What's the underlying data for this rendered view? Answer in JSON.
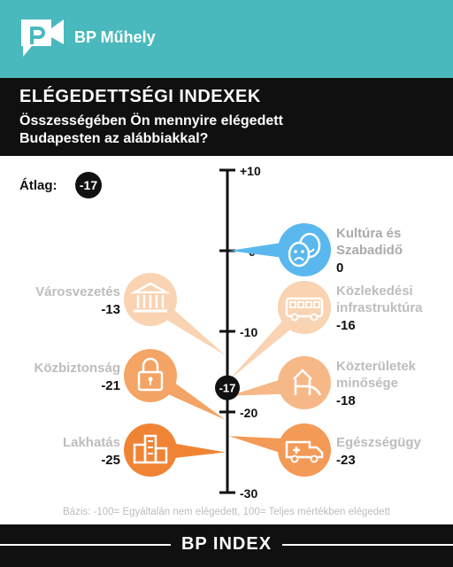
{
  "brand": {
    "name": "BP Műhely"
  },
  "header": {
    "title": "ELÉGEDETTSÉGI INDEXEK",
    "subtitle": "Összességében Ön mennyire elégedett Budapesten az alábbiakkal?"
  },
  "chart_data": {
    "type": "scatter",
    "title": "ELÉGEDETTSÉGI INDEXEK",
    "subtitle": "Összességében Ön mennyire elégedett Budapesten az alábbiakkal?",
    "ylim": [
      -30,
      10
    ],
    "yticks": [
      10,
      0,
      -10,
      -20,
      -30
    ],
    "ytick_labels": [
      "+10",
      "0",
      "-10",
      "-20",
      "-30"
    ],
    "average": {
      "label": "Átlag:",
      "value": -17,
      "value_label": "-17"
    },
    "categories": [
      {
        "name": "Kultúra és Szabadidő",
        "lines": [
          "Kultúra és",
          "Szabadidő"
        ],
        "value": 0,
        "value_label": "0",
        "side": "right",
        "icon": "theater-masks-icon",
        "color": "#5ab8ee"
      },
      {
        "name": "Városvezetés",
        "lines": [
          "Városvezetés"
        ],
        "value": -13,
        "value_label": "-13",
        "side": "left",
        "icon": "city-hall-icon",
        "color": "#f9d3b2"
      },
      {
        "name": "Közlekedési infrastruktúra",
        "lines": [
          "Közlekedési",
          "infrastruktúra"
        ],
        "value": -16,
        "value_label": "-16",
        "side": "right",
        "icon": "bus-icon",
        "color": "#f9d3b2"
      },
      {
        "name": "Közbiztonság",
        "lines": [
          "Közbiztonság"
        ],
        "value": -21,
        "value_label": "-21",
        "side": "left",
        "icon": "padlock-icon",
        "color": "#f4a465"
      },
      {
        "name": "Közterületek minősége",
        "lines": [
          "Közterületek",
          "minősége"
        ],
        "value": -18,
        "value_label": "-18",
        "side": "right",
        "icon": "playground-icon",
        "color": "#f7b888"
      },
      {
        "name": "Lakhatás",
        "lines": [
          "Lakhatás"
        ],
        "value": -25,
        "value_label": "-25",
        "side": "left",
        "icon": "buildings-icon",
        "color": "#f08435"
      },
      {
        "name": "Egészségügy",
        "lines": [
          "Egészségügy"
        ],
        "value": -23,
        "value_label": "-23",
        "side": "right",
        "icon": "ambulance-icon",
        "color": "#f49a57"
      }
    ],
    "note": "Bázis: -100= Egyáltalán nem elégedett, 100= Teljes mértékben elégedett"
  },
  "footer": {
    "label": "BP INDEX"
  }
}
